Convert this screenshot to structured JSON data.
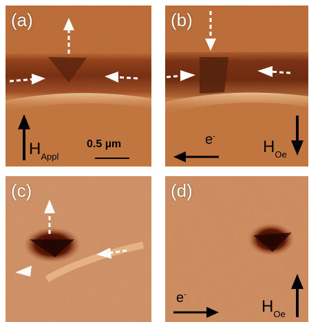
{
  "panels": {
    "a": {
      "label": "(a)",
      "field_main": "H",
      "field_sub": "Appl",
      "scale_label": "0.5 µm"
    },
    "b": {
      "label": "(b)",
      "electron": "e",
      "electron_sup": "-",
      "field_main": "H",
      "field_sub": "Oe"
    },
    "c": {
      "label": "(c)"
    },
    "d": {
      "label": "(d)",
      "electron": "e",
      "electron_sup": "-",
      "field_main": "H",
      "field_sub": "Oe"
    }
  },
  "colors": {
    "background": "#c97a45",
    "stripe_dark": "#6a1e06",
    "bright_edge": "#f3c49a",
    "arrow_white": "#ffffff",
    "arrow_black": "#000000"
  },
  "icons": [
    "dashed-arrow-icon",
    "arrow-up-icon",
    "arrow-down-icon",
    "arrow-left-icon",
    "arrow-right-icon"
  ]
}
